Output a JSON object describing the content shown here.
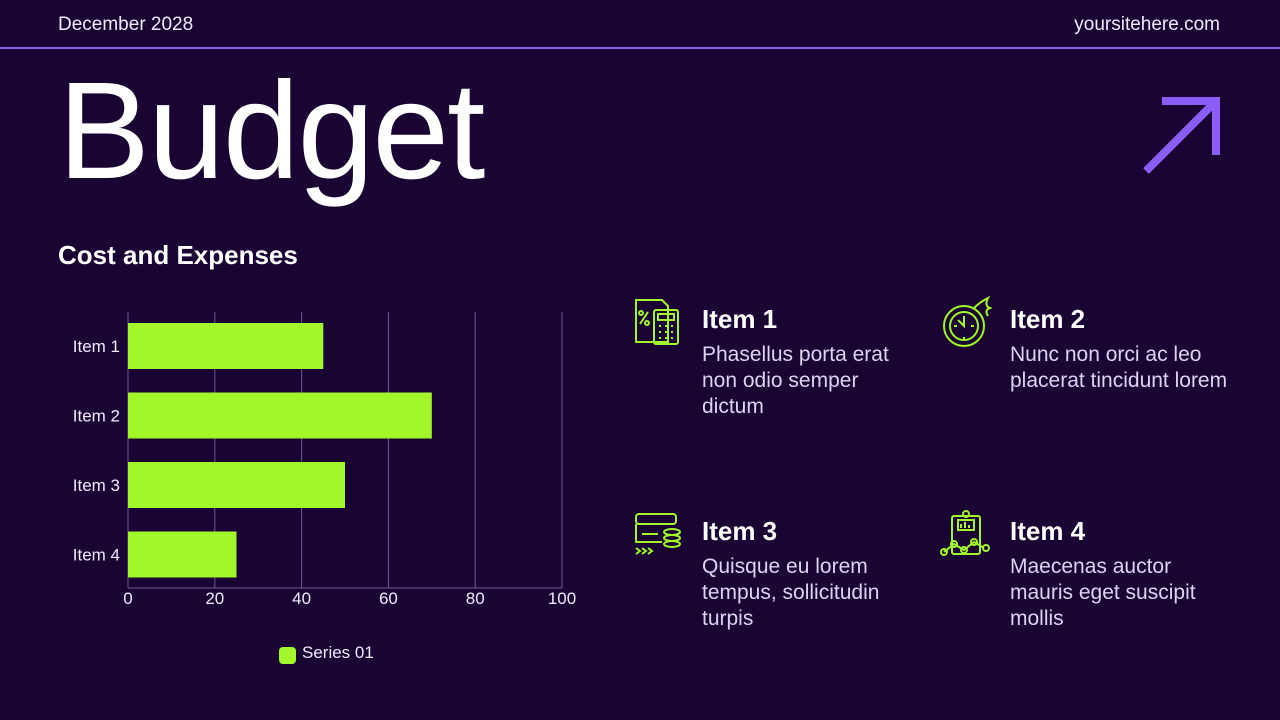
{
  "header": {
    "date": "December 2028",
    "site": "yoursitehere.com"
  },
  "title": "Budget",
  "subtitle": "Cost and Expenses",
  "colors": {
    "background": "#1a0433",
    "accent": "#8b5cf6",
    "bar": "#a3f62a"
  },
  "chart_data": {
    "type": "bar",
    "orientation": "horizontal",
    "categories": [
      "Item 1",
      "Item 2",
      "Item 3",
      "Item 4"
    ],
    "series": [
      {
        "name": "Series 01",
        "values": [
          45,
          70,
          50,
          25
        ]
      }
    ],
    "xticks": [
      "0",
      "20",
      "40",
      "60",
      "80",
      "100"
    ],
    "xlim": [
      0,
      100
    ],
    "grid": true,
    "legend": "bottom"
  },
  "items": [
    {
      "title": "Item 1",
      "text": "Phasellus porta erat non odio semper dictum",
      "icon": "calculator-percent-icon"
    },
    {
      "title": "Item 2",
      "text": "Nunc non orci ac leo placerat tincidunt lorem",
      "icon": "fast-clock-icon"
    },
    {
      "title": "Item 3",
      "text": "Quisque eu lorem tempus, sollicitudin turpis",
      "icon": "card-coins-icon"
    },
    {
      "title": "Item 4",
      "text": "Maecenas auctor mauris eget suscipit mollis",
      "icon": "clipboard-chart-icon"
    }
  ]
}
